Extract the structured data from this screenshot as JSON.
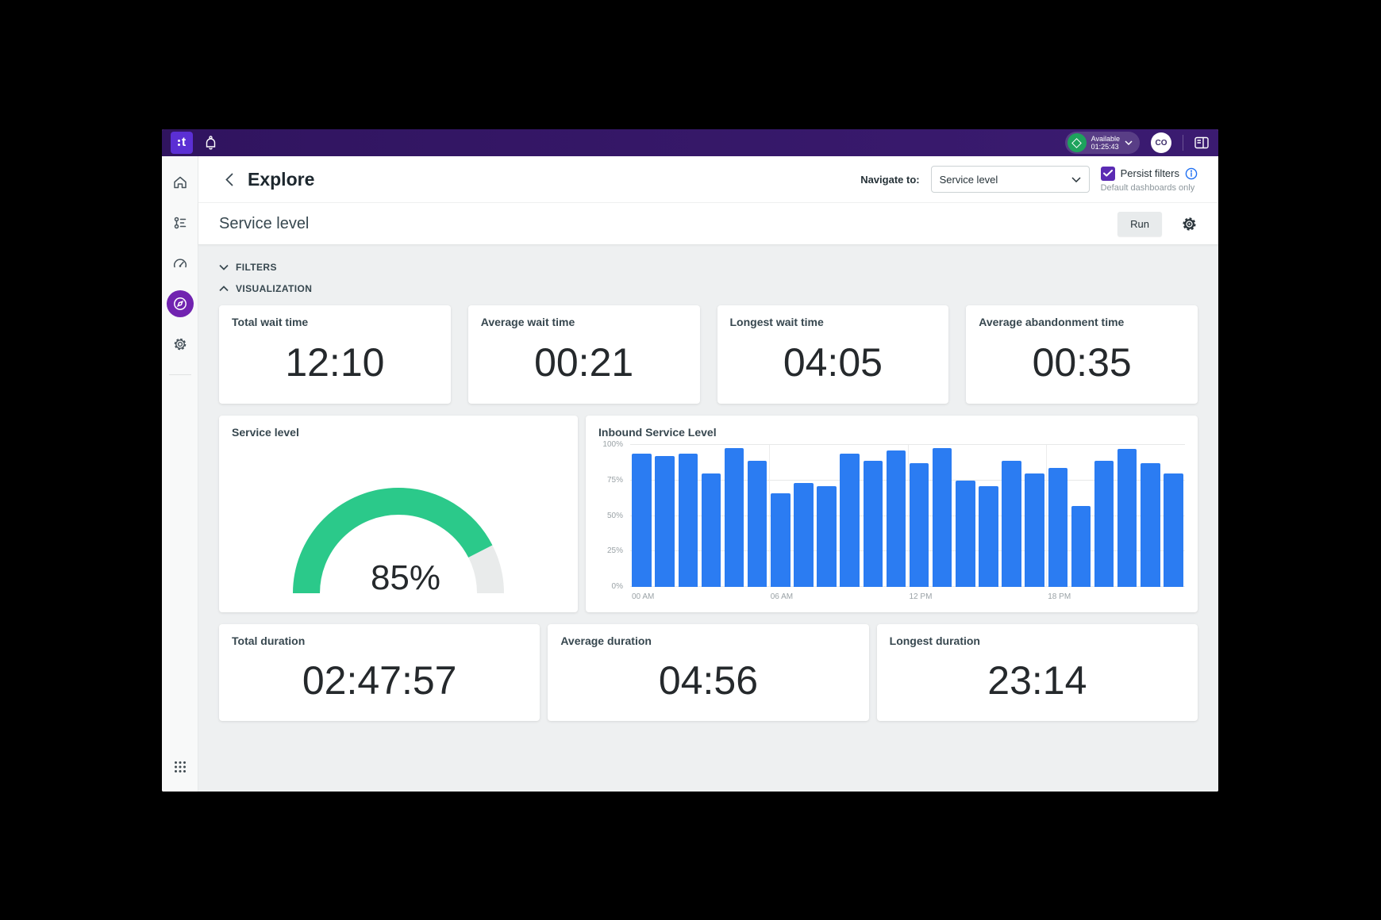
{
  "topbar": {
    "logo_text": "t",
    "status_label": "Available",
    "status_timer": "01:25:43",
    "avatar_initials": "CO"
  },
  "sidebar": {
    "items": [
      "home",
      "flows",
      "dashboards",
      "explore",
      "settings"
    ],
    "active_item": "explore"
  },
  "header": {
    "title": "Explore",
    "navigate_label": "Navigate to:",
    "navigate_value": "Service level",
    "persist_label": "Persist filters",
    "persist_checked": true,
    "persist_note": "Default dashboards only"
  },
  "toolbar": {
    "title": "Service level",
    "run_label": "Run"
  },
  "sections": {
    "filters": "FILTERS",
    "visualization": "VISUALIZATION"
  },
  "metrics_top": [
    {
      "title": "Total wait time",
      "value": "12:10"
    },
    {
      "title": "Average wait time",
      "value": "00:21"
    },
    {
      "title": "Longest wait time",
      "value": "04:05"
    },
    {
      "title": "Average abandonment time",
      "value": "00:35"
    }
  ],
  "metrics_bottom": [
    {
      "title": "Total duration",
      "value": "02:47:57"
    },
    {
      "title": "Average duration",
      "value": "04:56"
    },
    {
      "title": "Longest duration",
      "value": "23:14"
    }
  ],
  "chart_data": [
    {
      "type": "gauge",
      "title": "Service level",
      "value": 85,
      "min": 0,
      "max": 100,
      "label": "85%",
      "color": "#2bc98a",
      "track_color": "#e9ebeb"
    },
    {
      "type": "bar",
      "title": "Inbound Service Level",
      "x_unit": "hour of day",
      "categories": [
        0,
        1,
        2,
        3,
        4,
        5,
        6,
        7,
        8,
        9,
        10,
        11,
        12,
        13,
        14,
        15,
        16,
        17,
        18,
        19,
        20,
        21,
        22,
        23
      ],
      "values": [
        94,
        92,
        94,
        80,
        98,
        89,
        66,
        73,
        71,
        94,
        89,
        96,
        87,
        98,
        75,
        71,
        89,
        80,
        84,
        57,
        89,
        97,
        87,
        80
      ],
      "ylim": [
        0,
        100
      ],
      "yticks": [
        "0%",
        "25%",
        "50%",
        "75%",
        "100%"
      ],
      "xticks": [
        {
          "hour": 0,
          "label": "00 AM"
        },
        {
          "hour": 6,
          "label": "06 AM"
        },
        {
          "hour": 12,
          "label": "12 PM"
        },
        {
          "hour": 18,
          "label": "18 PM"
        }
      ],
      "bar_color": "#2b7cf2",
      "grid": true,
      "legend": "none"
    }
  ]
}
